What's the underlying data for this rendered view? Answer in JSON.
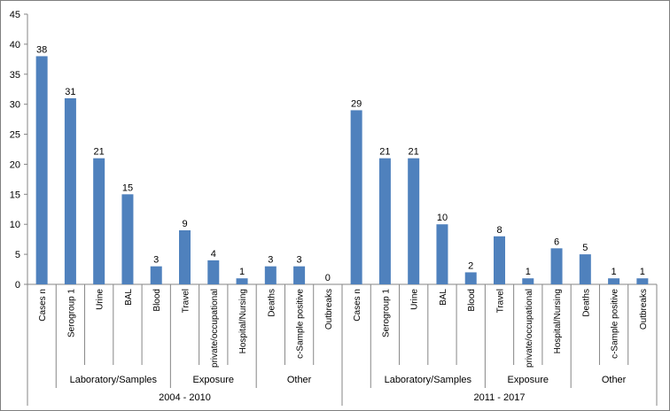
{
  "chart_data": {
    "type": "bar",
    "title": "",
    "xlabel": "",
    "ylabel": "",
    "ylim": [
      0,
      45
    ],
    "yticks": [
      0,
      5,
      10,
      15,
      20,
      25,
      30,
      35,
      40,
      45
    ],
    "grid": false,
    "legend": "none",
    "bar_color": "#4f81bd",
    "categories": [
      "Cases n",
      "Serogroup 1",
      "Urine",
      "BAL",
      "Blood",
      "Travel",
      "private/occupational",
      "Hospital/Nursing",
      "Deaths",
      "c-Sample positive",
      "Outbreaks",
      "Cases n",
      "Serogroup 1",
      "Urine",
      "BAL",
      "Blood",
      "Travel",
      "private/occupational",
      "Hospital/Nursing",
      "Deaths",
      "c-Sample positive",
      "Outbreaks"
    ],
    "values": [
      38,
      31,
      21,
      15,
      3,
      9,
      4,
      1,
      3,
      3,
      0,
      29,
      21,
      21,
      10,
      2,
      8,
      1,
      6,
      5,
      1,
      1
    ],
    "groups": [
      {
        "label": "Laboratory/Samples",
        "start": 1,
        "end": 4
      },
      {
        "label": "Exposure",
        "start": 5,
        "end": 7
      },
      {
        "label": "Other",
        "start": 8,
        "end": 10
      },
      {
        "label": "Laboratory/Samples",
        "start": 12,
        "end": 15
      },
      {
        "label": "Exposure",
        "start": 16,
        "end": 18
      },
      {
        "label": "Other",
        "start": 19,
        "end": 21
      }
    ],
    "periods": [
      {
        "label": "2004 - 2010",
        "start": 0,
        "end": 10
      },
      {
        "label": "2011 - 2017",
        "start": 11,
        "end": 21
      }
    ]
  }
}
